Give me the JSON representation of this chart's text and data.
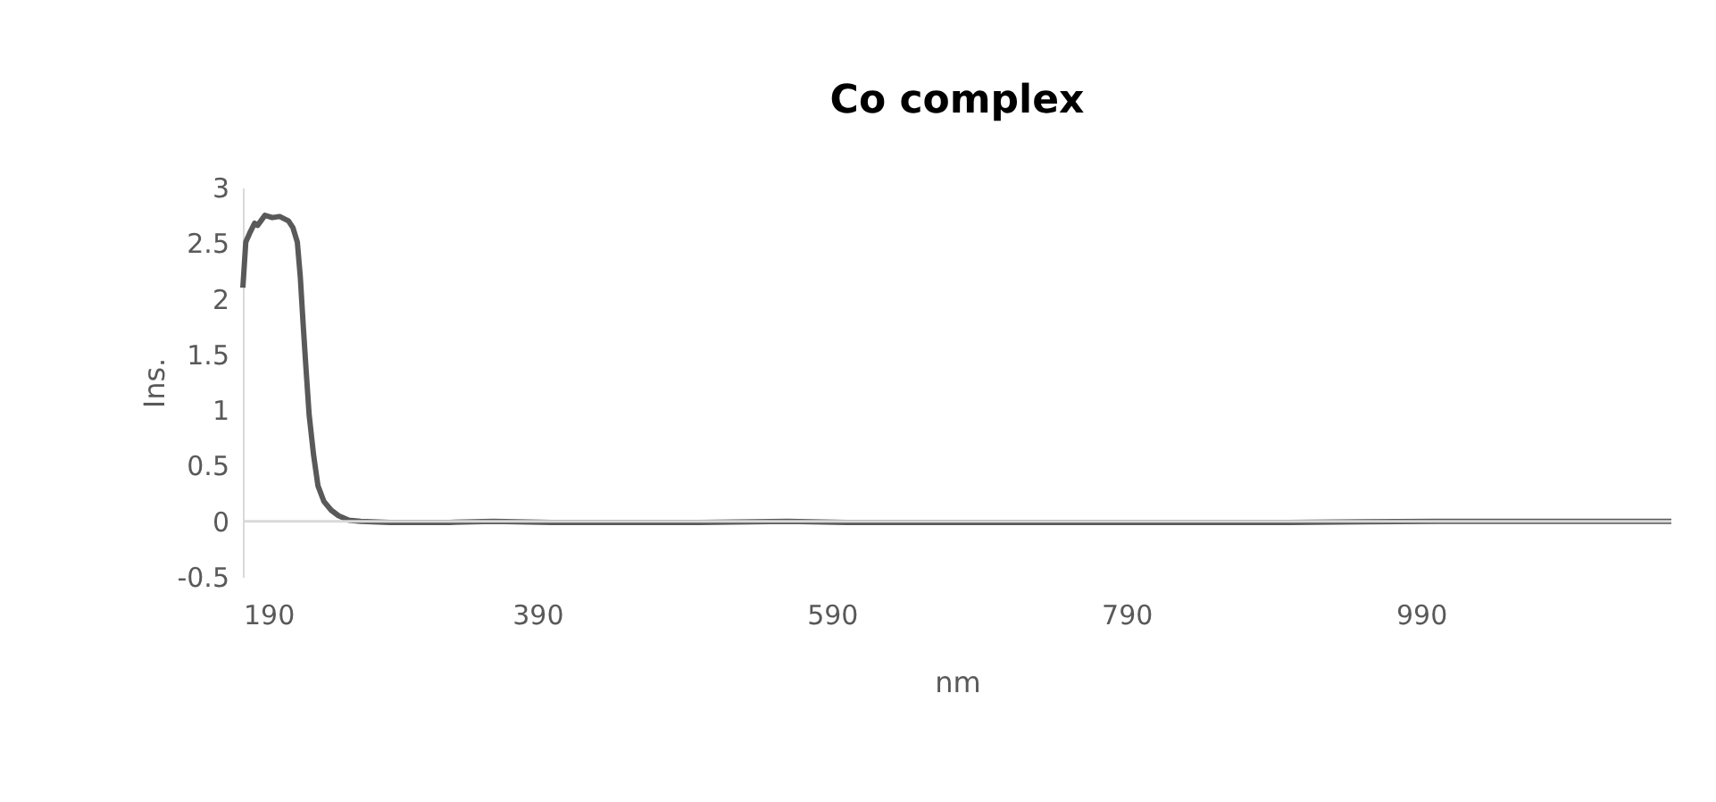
{
  "chart_data": {
    "type": "line",
    "title": "Co complex",
    "xlabel": "nm",
    "ylabel": "Ins.",
    "x": [
      190,
      192,
      195,
      198,
      200,
      205,
      210,
      215,
      221,
      224,
      227,
      229,
      231,
      233,
      235,
      238,
      241,
      245,
      250,
      255,
      262,
      270,
      290,
      330,
      360,
      400,
      450,
      500,
      560,
      600,
      700,
      800,
      900,
      1000,
      1050,
      1100,
      1160
    ],
    "series": [
      {
        "color": "#595959",
        "values": [
          2.1,
          2.51,
          2.6,
          2.68,
          2.66,
          2.75,
          2.73,
          2.74,
          2.7,
          2.64,
          2.51,
          2.2,
          1.76,
          1.35,
          0.96,
          0.6,
          0.32,
          0.18,
          0.1,
          0.05,
          0.01,
          0,
          -0.01,
          -0.01,
          0,
          -0.01,
          -0.01,
          -0.01,
          0,
          -0.01,
          -0.01,
          -0.01,
          -0.01,
          0,
          0,
          0,
          0
        ]
      }
    ],
    "xlim": [
      190,
      1160
    ],
    "xticks": [
      190,
      390,
      590,
      790,
      990
    ],
    "ylim": [
      -0.5,
      3
    ],
    "yticks": [
      -0.5,
      0,
      0.5,
      1,
      1.5,
      2,
      2.5,
      3
    ],
    "ref_lines": [
      {
        "axis": "y",
        "value": 0,
        "color": "#d9d9d9"
      }
    ],
    "grid": false,
    "marker": "none",
    "line_style": "solid"
  }
}
